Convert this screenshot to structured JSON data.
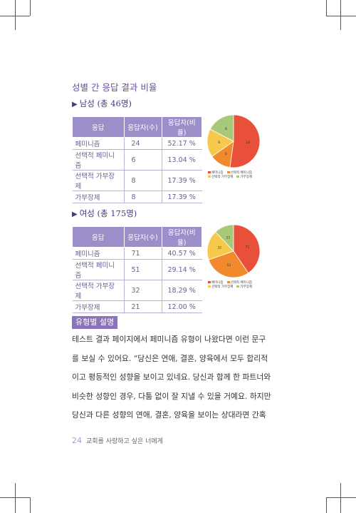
{
  "section_title": "성별 간 응답 결과 비율",
  "male": {
    "heading": "남성 (총 46명)",
    "headers": [
      "응답",
      "응답자(수)",
      "응답자(비율)"
    ],
    "rows": [
      [
        "페미니즘",
        "24",
        "52.17 %"
      ],
      [
        "선택적 페미니즘",
        "6",
        "13.04 %"
      ],
      [
        "선택적 가부장제",
        "8",
        "17.39 %"
      ],
      [
        "가부장제",
        "8",
        "17.39 %"
      ]
    ]
  },
  "female": {
    "heading": "여성 (총 175명)",
    "headers": [
      "응답",
      "응답자(수)",
      "응답자(비율)"
    ],
    "rows": [
      [
        "페미니즘",
        "71",
        "40.57 %"
      ],
      [
        "선택적 페미니즘",
        "51",
        "29.14 %"
      ],
      [
        "선택적 가부장제",
        "32",
        "18.29 %"
      ],
      [
        "가부장제",
        "21",
        "12.00 %"
      ]
    ]
  },
  "chart_data": [
    {
      "type": "pie",
      "categories": [
        "페미니즘",
        "선택적 페미니즘",
        "선택적 가부장제",
        "가부장제"
      ],
      "values": [
        24,
        6,
        8,
        8
      ],
      "colors": [
        "#e8503a",
        "#f08a2c",
        "#f7c94a",
        "#a9c97a"
      ]
    },
    {
      "type": "pie",
      "categories": [
        "페미니즘",
        "선택적 페미니즘",
        "선택적 가부장제",
        "가부장제"
      ],
      "values": [
        71,
        51,
        32,
        21
      ],
      "colors": [
        "#e8503a",
        "#f08a2c",
        "#f7c94a",
        "#a9c97a"
      ]
    }
  ],
  "legend_labels": [
    "페미니즘",
    "선택적 페미니즘",
    "선택적 가부장제",
    "가부장제"
  ],
  "tag": "유형별 설명",
  "body_lines": [
    "테스트 결과 페이지에서 페미니즘 유형이 나왔다면 이런 문구",
    "를 보실 수 있어요. “당신은 연애, 결혼, 양육에서 모두 합리적",
    "이고 평등적인 성향을 보이고 있네요. 당신과 함께 한 파트너와",
    "비슷한 성향인 경우, 다툼 없이 잘 지낼 수 있을 거예요. 하지만",
    "당신과 다른 성향의 연애, 결혼, 양육을 보이는 상대라면 간혹"
  ],
  "footer": {
    "page": "24",
    "title": "교회를 사랑하고 싶은 너에게"
  }
}
